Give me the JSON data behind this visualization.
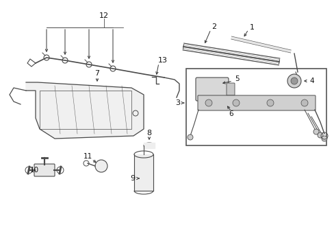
{
  "bg_color": "#ffffff",
  "lc": "#4a4a4a",
  "lw": 0.7,
  "fig_w": 4.89,
  "fig_h": 3.6,
  "dpi": 100,
  "xlim": [
    0,
    489
  ],
  "ylim": [
    0,
    360
  ]
}
